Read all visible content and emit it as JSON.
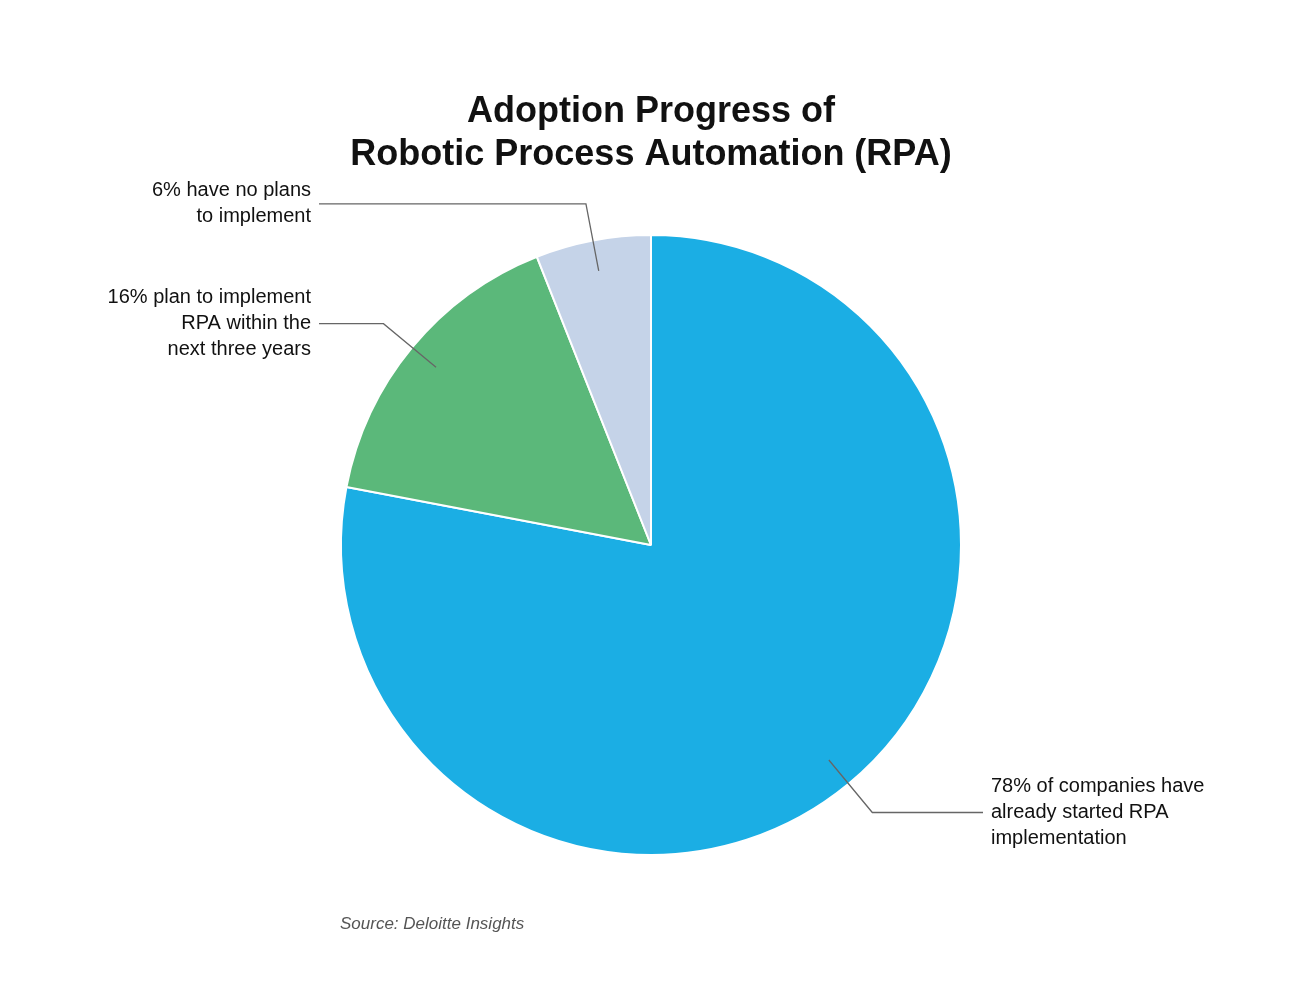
{
  "chart_data": {
    "type": "pie",
    "title": [
      "Adoption Progress of",
      "Robotic Process Automation (RPA)"
    ],
    "values": [
      78,
      16,
      6
    ],
    "colors": [
      "#1BAEE4",
      "#5BB87A",
      "#C5D3E8"
    ],
    "annotations": [
      "78% of companies have\nalready started RPA\nimplementation",
      "16% plan to implement\nRPA within the\nnext three years",
      "6% have no plans\nto implement"
    ],
    "source": "Source: Deloitte Insights"
  }
}
